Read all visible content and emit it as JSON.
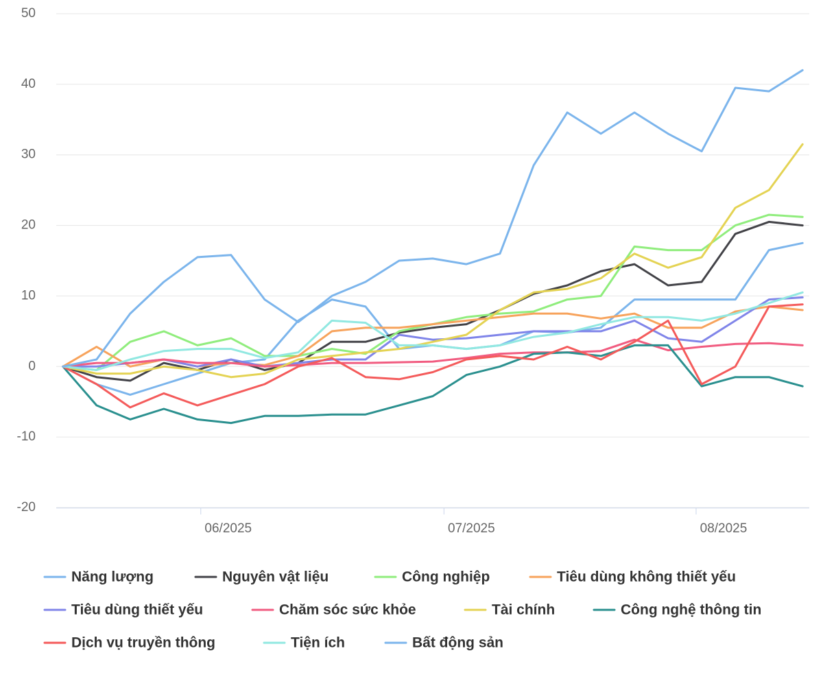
{
  "chart_data": {
    "type": "line",
    "grid": true,
    "legend": "bottom",
    "x": [
      0,
      3,
      6,
      9,
      12,
      15,
      18,
      21,
      24,
      27,
      30,
      33,
      36,
      39,
      42,
      45,
      48,
      51,
      54,
      57,
      60,
      63,
      66
    ],
    "xlim": [
      -0.6,
      66.6
    ],
    "xticks": [
      {
        "value": 12.3,
        "label": "06/2025"
      },
      {
        "value": 34.0,
        "label": "07/2025"
      },
      {
        "value": 56.5,
        "label": "08/2025"
      }
    ],
    "ylim": [
      -20,
      50
    ],
    "yticks": [
      -20,
      -10,
      0,
      10,
      20,
      30,
      40,
      50
    ],
    "series": [
      {
        "name": "Năng lượng",
        "color": "#7cb5ec",
        "values": [
          0,
          -2.5,
          -4,
          -2.5,
          -1,
          0.5,
          1,
          6.5,
          9.5,
          8.5,
          2.5,
          3,
          2.5,
          3,
          5,
          4.8,
          5.5,
          9.5,
          9.5,
          9.5,
          9.5,
          16.5,
          17.5
        ]
      },
      {
        "name": "Nguyên vật liệu",
        "color": "#434348",
        "values": [
          0,
          -1.5,
          -2,
          0.5,
          -0.5,
          1,
          -0.5,
          0.5,
          3.5,
          3.5,
          4.8,
          5.5,
          6,
          8,
          10.3,
          11.5,
          13.5,
          14.5,
          11.5,
          12,
          18.8,
          20.5,
          20
        ]
      },
      {
        "name": "Công nghiệp",
        "color": "#90ed7d",
        "values": [
          0,
          -0.5,
          3.5,
          5,
          3,
          4,
          1.5,
          1.5,
          2.5,
          1.8,
          5,
          6,
          7,
          7.5,
          7.8,
          9.5,
          10,
          17,
          16.5,
          16.5,
          20,
          21.5,
          21.2
        ]
      },
      {
        "name": "Tiêu dùng không thiết yếu",
        "color": "#f7a35c",
        "values": [
          0,
          2.8,
          0,
          1,
          0,
          0.5,
          0.2,
          1.5,
          5,
          5.5,
          5.5,
          6,
          6.5,
          7,
          7.5,
          7.5,
          6.8,
          7.5,
          5.5,
          5.5,
          7.8,
          8.5,
          8
        ]
      },
      {
        "name": "Tiêu dùng thiết yếu",
        "color": "#8085e9",
        "values": [
          0,
          0,
          0.5,
          1,
          0,
          1,
          0,
          0.5,
          1,
          1,
          4.5,
          3.8,
          4,
          4.5,
          5,
          5,
          5,
          6.5,
          4,
          3.5,
          6.5,
          9.5,
          9.8
        ]
      },
      {
        "name": "Chăm sóc sức khỏe",
        "color": "#f15c80",
        "values": [
          0,
          0.5,
          0.5,
          1,
          0.5,
          0.5,
          0,
          0.2,
          0.5,
          0.5,
          0.6,
          0.7,
          1.2,
          1.8,
          2,
          2,
          2.2,
          3.8,
          2.3,
          2.8,
          3.2,
          3.3,
          3
        ]
      },
      {
        "name": "Tài chính",
        "color": "#e4d354",
        "values": [
          0,
          -1,
          -1,
          0,
          -0.5,
          -1.5,
          -1,
          1,
          1.5,
          2,
          2.5,
          3.5,
          4.5,
          8,
          10.5,
          11,
          12.5,
          16,
          14,
          15.5,
          22.5,
          25,
          31.5
        ]
      },
      {
        "name": "Công nghệ thông tin",
        "color": "#2b908f",
        "values": [
          0,
          -5.5,
          -7.5,
          -6,
          -7.5,
          -8,
          -7,
          -7,
          -6.8,
          -6.8,
          -5.5,
          -4.2,
          -1.2,
          0,
          1.8,
          2,
          1.5,
          3,
          3,
          -2.8,
          -1.5,
          -1.5,
          -2.8
        ]
      },
      {
        "name": "Dịch vụ truyền thông",
        "color": "#f45b5b",
        "values": [
          0,
          -2.5,
          -5.8,
          -3.8,
          -5.5,
          -4,
          -2.5,
          0,
          1.2,
          -1.5,
          -1.8,
          -0.8,
          1,
          1.5,
          1,
          2.8,
          1,
          3.5,
          6.5,
          -2.5,
          0,
          8.5,
          8.8
        ]
      },
      {
        "name": "Tiện ích",
        "color": "#91e8e1",
        "values": [
          0,
          -0.5,
          1,
          2.2,
          2.5,
          2.5,
          1.2,
          2,
          6.5,
          6.2,
          3,
          3,
          2.5,
          3,
          4.2,
          4.8,
          6,
          7,
          7,
          6.5,
          7.5,
          9,
          10.5
        ]
      },
      {
        "name": "Bất động sản",
        "color": "#7cb5ec",
        "values": [
          0,
          1,
          7.5,
          12,
          15.5,
          15.8,
          9.5,
          6.3,
          10,
          12,
          15,
          15.3,
          14.5,
          16,
          28.5,
          36,
          33,
          36,
          33,
          30.5,
          39.5,
          39,
          42
        ]
      }
    ]
  }
}
